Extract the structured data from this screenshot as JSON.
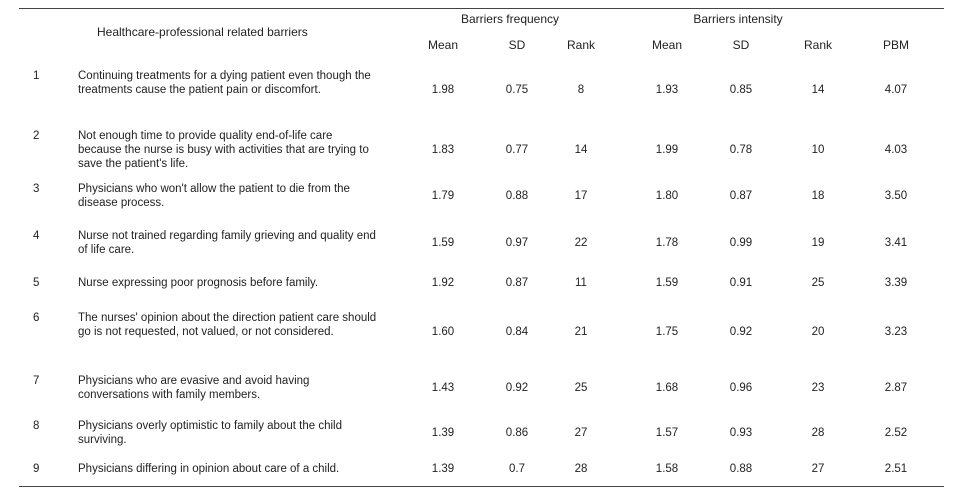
{
  "header": {
    "barrier_col": "Healthcare-professional related barriers",
    "group_frequency": "Barriers frequency",
    "group_intensity": "Barriers intensity",
    "mean": "Mean",
    "sd": "SD",
    "rank": "Rank",
    "pbm": "PBM"
  },
  "rows": [
    {
      "no": "1",
      "barrier": "Continuing treatments for a dying patient even though the treatments cause the patient pain or discomfort.",
      "f_mean": "1.98",
      "f_sd": "0.75",
      "f_rank": "8",
      "i_mean": "1.93",
      "i_sd": "0.85",
      "i_rank": "14",
      "pbm": "4.07"
    },
    {
      "no": "2",
      "barrier": "Not enough time to provide quality end-of-life care because the nurse is busy with activities that are trying to save the patient's life.",
      "f_mean": "1.83",
      "f_sd": "0.77",
      "f_rank": "14",
      "i_mean": "1.99",
      "i_sd": "0.78",
      "i_rank": "10",
      "pbm": "4.03"
    },
    {
      "no": "3",
      "barrier": "Physicians who won't allow the patient to die from the disease process.",
      "f_mean": "1.79",
      "f_sd": "0.88",
      "f_rank": "17",
      "i_mean": "1.80",
      "i_sd": "0.87",
      "i_rank": "18",
      "pbm": "3.50"
    },
    {
      "no": "4",
      "barrier": "Nurse not trained regarding family grieving and quality end of life care.",
      "f_mean": "1.59",
      "f_sd": "0.97",
      "f_rank": "22",
      "i_mean": "1.78",
      "i_sd": "0.99",
      "i_rank": "19",
      "pbm": "3.41"
    },
    {
      "no": "5",
      "barrier": "Nurse expressing poor prognosis before family.",
      "f_mean": "1.92",
      "f_sd": "0.87",
      "f_rank": "11",
      "i_mean": "1.59",
      "i_sd": "0.91",
      "i_rank": "25",
      "pbm": "3.39"
    },
    {
      "no": "6",
      "barrier": "The nurses' opinion about the direction patient care should go is not requested, not valued, or not considered.",
      "f_mean": "1.60",
      "f_sd": "0.84",
      "f_rank": "21",
      "i_mean": "1.75",
      "i_sd": "0.92",
      "i_rank": "20",
      "pbm": "3.23"
    },
    {
      "no": "7",
      "barrier": "Physicians who are evasive and avoid having conversations with family members.",
      "f_mean": "1.43",
      "f_sd": "0.92",
      "f_rank": "25",
      "i_mean": "1.68",
      "i_sd": "0.96",
      "i_rank": "23",
      "pbm": "2.87"
    },
    {
      "no": "8",
      "barrier": "Physicians overly optimistic to family about the child surviving.",
      "f_mean": "1.39",
      "f_sd": "0.86",
      "f_rank": "27",
      "i_mean": "1.57",
      "i_sd": "0.93",
      "i_rank": "28",
      "pbm": "2.52"
    },
    {
      "no": "9",
      "barrier": "Physicians differing in opinion about care of a child.",
      "f_mean": "1.39",
      "f_sd": "0.7",
      "f_rank": "28",
      "i_mean": "1.58",
      "i_sd": "0.88",
      "i_rank": "27",
      "pbm": "2.51"
    }
  ]
}
